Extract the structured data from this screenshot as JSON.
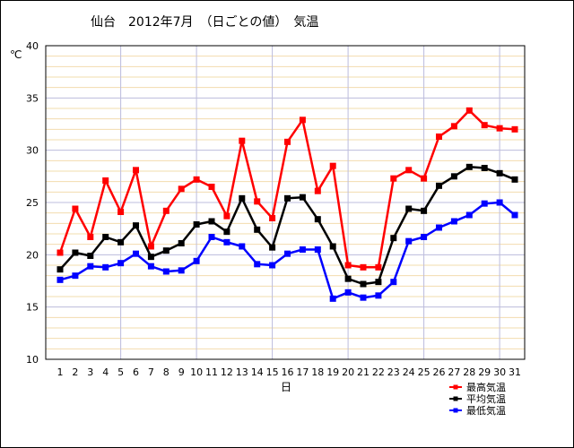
{
  "chart_data": {
    "type": "line",
    "title": "仙台　2012年7月　（日ごとの値）　気温",
    "xlabel": "日",
    "ylabel": "℃",
    "ylim": [
      10,
      40
    ],
    "y_ticks": [
      10,
      15,
      20,
      25,
      30,
      35,
      40
    ],
    "grid": true,
    "legend_position": "bottom-right",
    "categories": [
      "1",
      "2",
      "3",
      "4",
      "5",
      "6",
      "7",
      "8",
      "9",
      "10",
      "11",
      "12",
      "13",
      "14",
      "15",
      "16",
      "17",
      "18",
      "19",
      "20",
      "21",
      "22",
      "23",
      "24",
      "25",
      "26",
      "27",
      "28",
      "29",
      "30",
      "31"
    ],
    "series": [
      {
        "name": "最高気温",
        "color": "#ff0000",
        "values": [
          20.2,
          24.4,
          21.7,
          27.1,
          24.1,
          28.1,
          20.8,
          24.2,
          26.3,
          27.2,
          26.5,
          23.7,
          30.9,
          25.1,
          23.5,
          30.8,
          32.9,
          26.1,
          28.5,
          19.0,
          18.8,
          18.8,
          27.3,
          28.1,
          27.3,
          31.3,
          32.3,
          33.8,
          32.4,
          32.1,
          32.0
        ]
      },
      {
        "name": "平均気温",
        "color": "#000000",
        "values": [
          18.6,
          20.2,
          19.9,
          21.7,
          21.2,
          22.8,
          19.8,
          20.4,
          21.1,
          22.9,
          23.2,
          22.2,
          25.4,
          22.4,
          20.7,
          25.4,
          25.5,
          23.4,
          20.8,
          17.7,
          17.2,
          17.4,
          21.6,
          24.4,
          24.2,
          26.6,
          27.5,
          28.4,
          28.3,
          27.8,
          27.2
        ]
      },
      {
        "name": "最低気温",
        "color": "#0000ff",
        "values": [
          17.6,
          18.0,
          18.9,
          18.8,
          19.2,
          20.1,
          18.9,
          18.4,
          18.5,
          19.4,
          21.7,
          21.2,
          20.8,
          19.1,
          19.0,
          20.1,
          20.5,
          20.5,
          15.8,
          16.4,
          15.9,
          16.1,
          17.4,
          21.3,
          21.7,
          22.6,
          23.2,
          23.8,
          24.9,
          25.0,
          23.8
        ]
      }
    ]
  }
}
